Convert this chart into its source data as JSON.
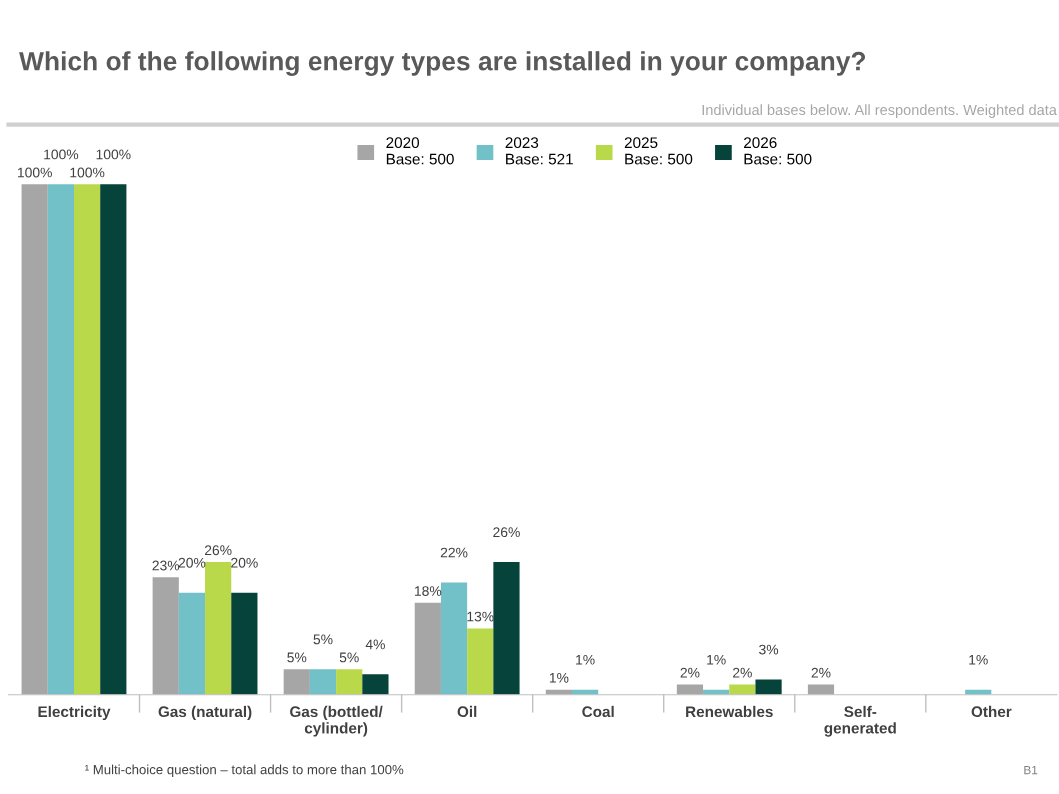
{
  "chart_data": {
    "type": "bar",
    "title": "Which of the following energy types are installed in your company?",
    "subtitle": "Individual bases below. All respondents. Weighted data",
    "categories": [
      "Electricity",
      "Gas (natural)",
      "Gas (bottled/\ncylinder)",
      "Oil",
      "Coal",
      "Renewables",
      "Self-\ngenerated",
      "Other"
    ],
    "series": [
      {
        "name": "2020\nBase: 500",
        "color": "#a6a6a6",
        "values": [
          100,
          23,
          5,
          18,
          1,
          2,
          2,
          null
        ],
        "value_labels": [
          "100%",
          "23%",
          "5%",
          "18%",
          "1%",
          "2%",
          "2%",
          null
        ]
      },
      {
        "name": "2023\nBase: 521",
        "color": "#72c0c8",
        "values": [
          100,
          20,
          5,
          22,
          1,
          1,
          null,
          1
        ],
        "value_labels": [
          "100%",
          "20%",
          "5%",
          "22%",
          "1%",
          "1%",
          null,
          "1%"
        ]
      },
      {
        "name": "2025\nBase: 500",
        "color": "#b9d84a",
        "values": [
          100,
          26,
          5,
          13,
          null,
          2,
          null,
          null
        ],
        "value_labels": [
          "100%",
          "26%",
          "5%",
          "13%",
          null,
          "2%",
          null,
          null
        ]
      },
      {
        "name": "2026\nBase: 500",
        "color": "#06433a",
        "values": [
          100,
          20,
          4,
          26,
          null,
          3,
          null,
          null
        ],
        "value_labels": [
          "100%",
          "20%",
          "4%",
          "26%",
          null,
          "3%",
          null,
          null
        ]
      }
    ],
    "legend": "top",
    "grid": false,
    "annotations": [
      "¹ Multi-choice question – total adds to more than 100%",
      "B1"
    ]
  }
}
